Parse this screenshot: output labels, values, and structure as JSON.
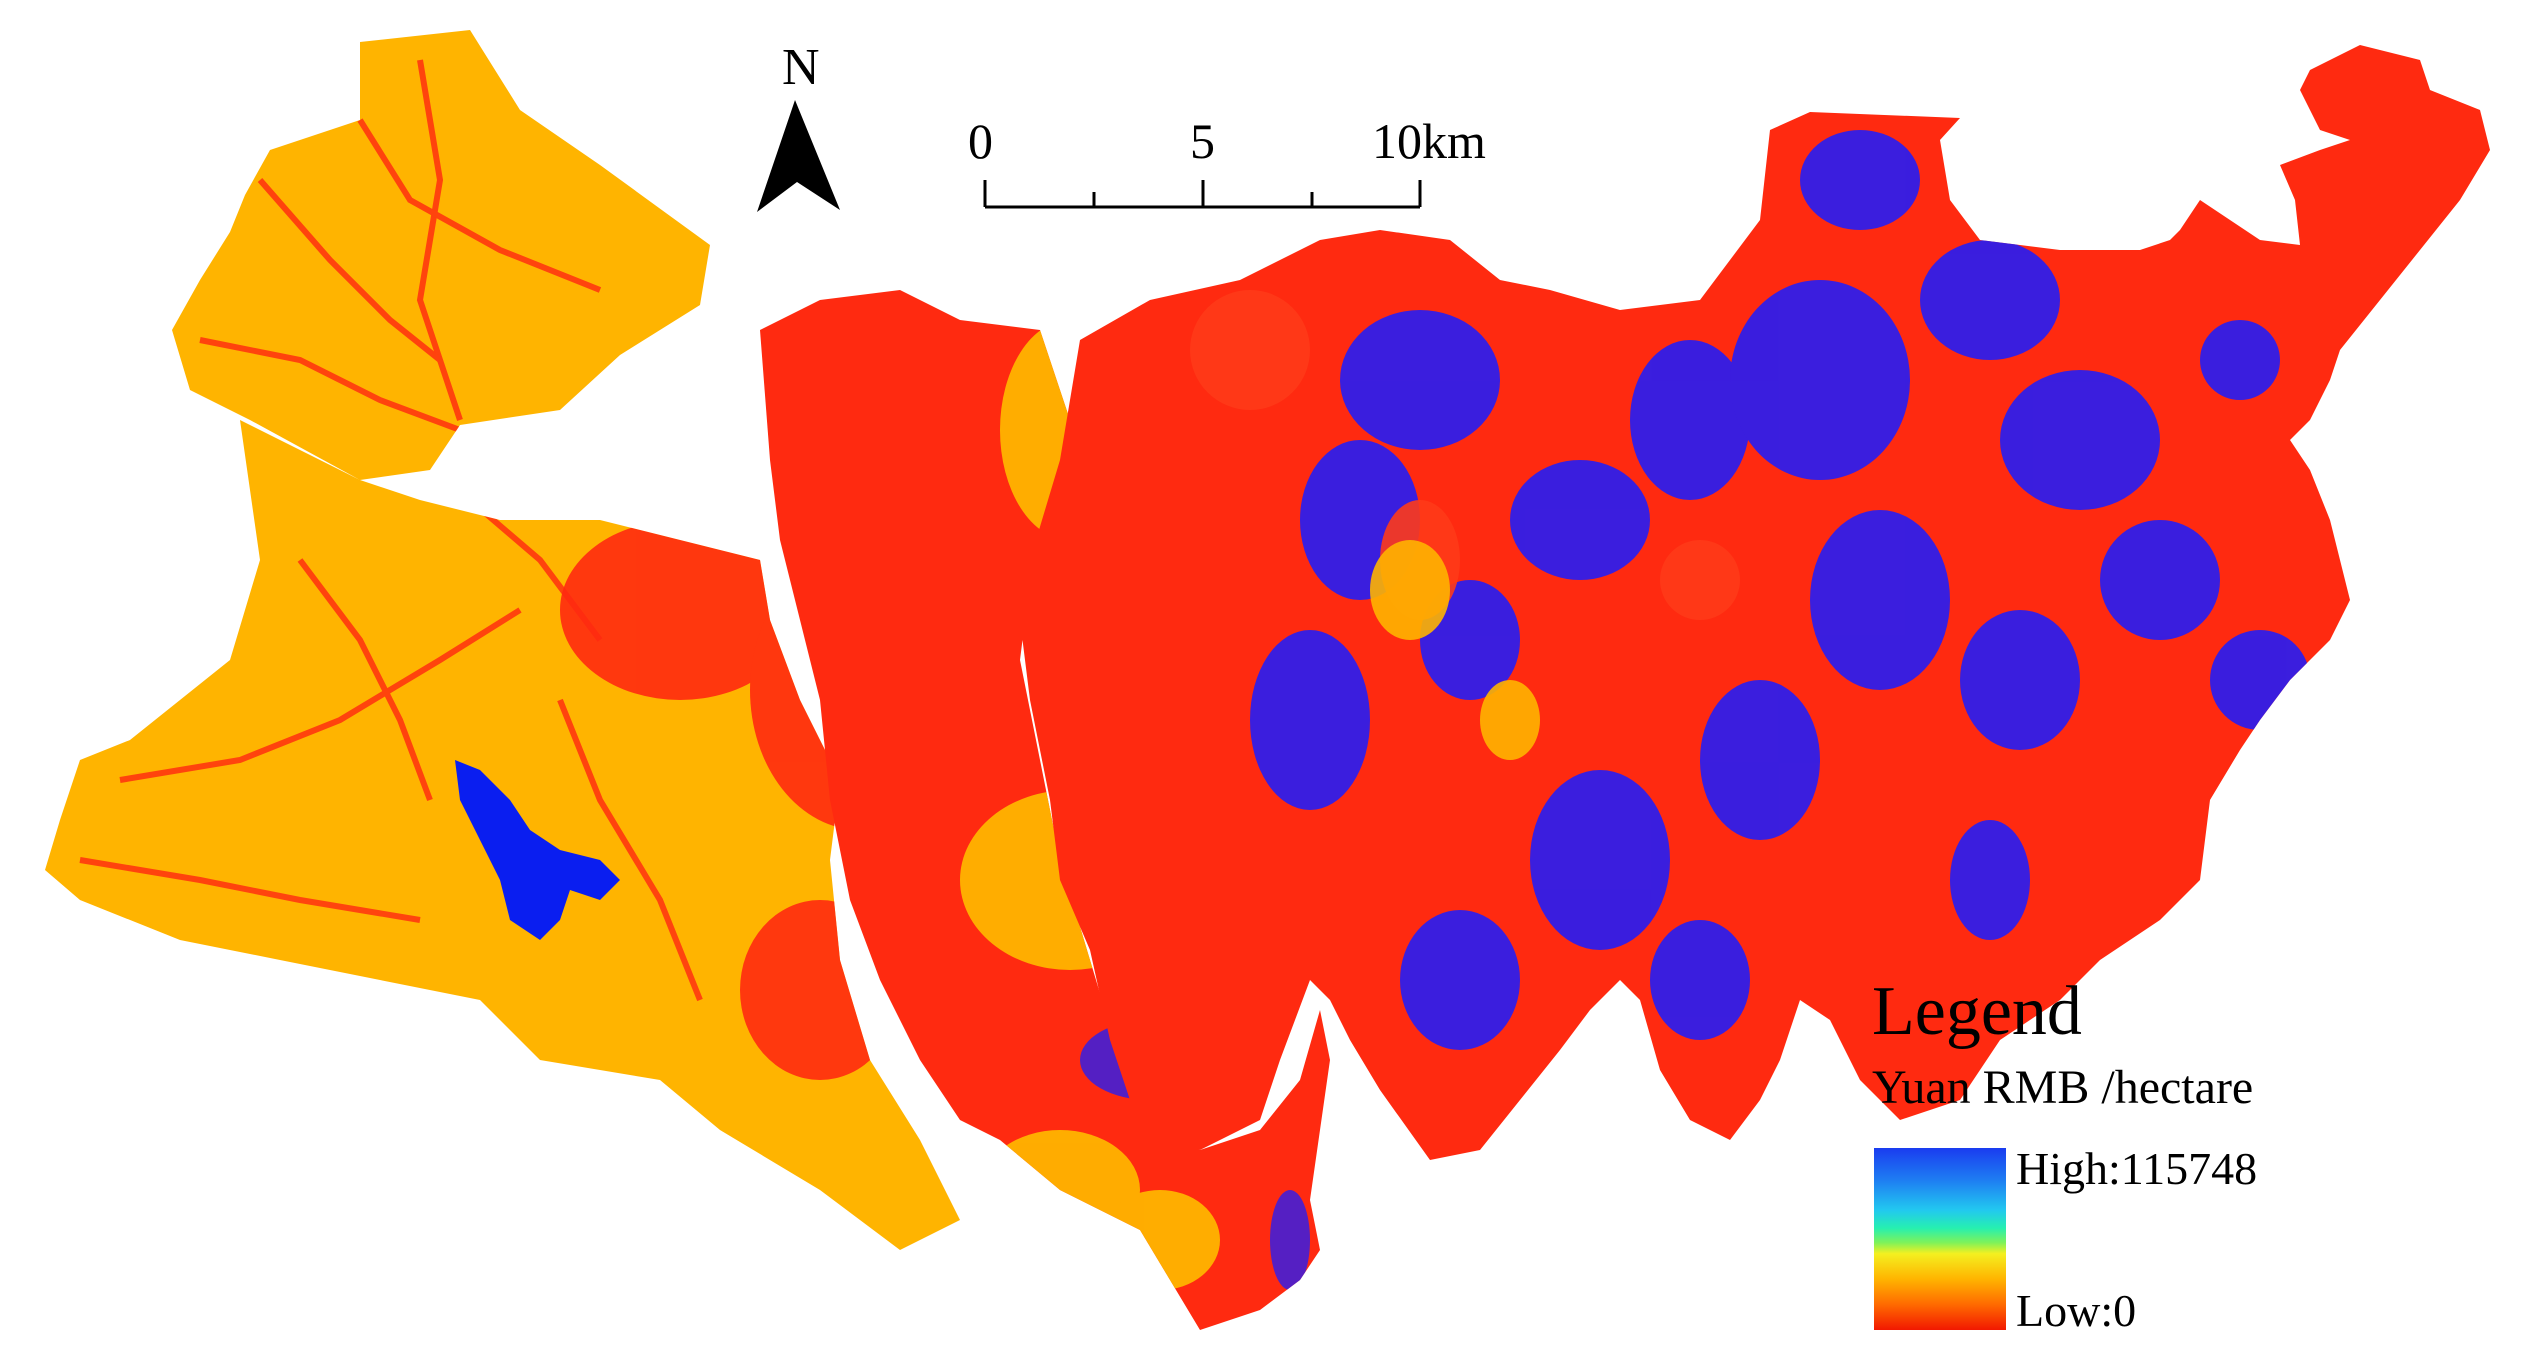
{
  "map": {
    "north_letter": "N",
    "scale_bar": {
      "labels": [
        "0",
        "5",
        "10km"
      ]
    },
    "legend": {
      "title": "Legend",
      "unit": "Yuan RMB /hectare",
      "high_label": "High:115748",
      "low_label": "Low:0",
      "ramp_colors": [
        "#1a3cf0",
        "#1e7ff2",
        "#22c8f0",
        "#26f0b0",
        "#7ef25a",
        "#f4f020",
        "#ffb400",
        "#ff6a00",
        "#f21800"
      ]
    },
    "colors": {
      "low_value": "#ffb400",
      "mid_value": "#ff2a10",
      "high_value": "#2a1df0",
      "water": "#0a1ef0"
    }
  }
}
